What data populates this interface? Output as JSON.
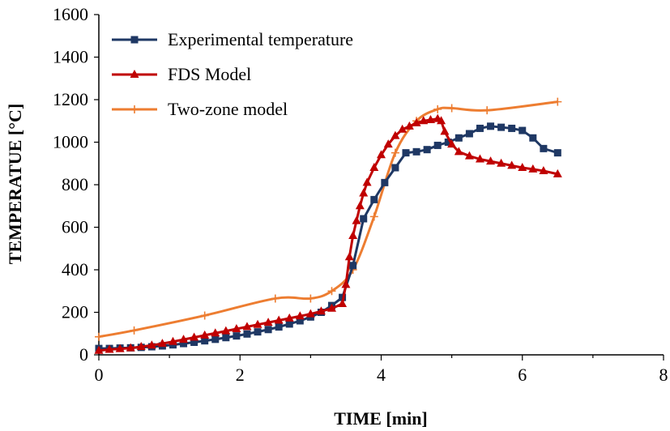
{
  "chart_data": {
    "type": "line",
    "xlabel": "TIME [min]",
    "ylabel": "TEMPERATUE [°C]",
    "xlim": [
      0,
      8
    ],
    "ylim": [
      0,
      1600
    ],
    "xticks": [
      "0",
      "2",
      "4",
      "6",
      "8"
    ],
    "yticks": [
      "0",
      "200",
      "400",
      "600",
      "800",
      "1000",
      "1200",
      "1400",
      "1600"
    ],
    "grid": false,
    "legend_position": "top-left",
    "series": [
      {
        "name": "Experimental temperature",
        "color": "#1f3864",
        "marker": "square",
        "smooth": false,
        "x": [
          0,
          0.15,
          0.3,
          0.45,
          0.6,
          0.75,
          0.9,
          1.05,
          1.2,
          1.35,
          1.5,
          1.65,
          1.8,
          1.95,
          2.1,
          2.25,
          2.4,
          2.55,
          2.7,
          2.85,
          3.0,
          3.15,
          3.3,
          3.45,
          3.6,
          3.75,
          3.9,
          4.05,
          4.2,
          4.35,
          4.5,
          4.65,
          4.8,
          4.95,
          5.1,
          5.25,
          5.4,
          5.55,
          5.7,
          5.85,
          6.0,
          6.15,
          6.3,
          6.5
        ],
        "y": [
          30,
          30,
          32,
          33,
          35,
          38,
          42,
          47,
          53,
          59,
          66,
          73,
          81,
          89,
          98,
          108,
          119,
          131,
          145,
          160,
          178,
          200,
          232,
          270,
          420,
          640,
          730,
          810,
          880,
          950,
          955,
          965,
          985,
          1000,
          1020,
          1040,
          1065,
          1075,
          1070,
          1065,
          1055,
          1020,
          970,
          950
        ]
      },
      {
        "name": "FDS Model",
        "color": "#c00000",
        "marker": "triangle",
        "smooth": false,
        "x": [
          0,
          0.15,
          0.3,
          0.45,
          0.6,
          0.75,
          0.9,
          1.05,
          1.2,
          1.35,
          1.5,
          1.65,
          1.8,
          1.95,
          2.1,
          2.25,
          2.4,
          2.55,
          2.7,
          2.85,
          3.0,
          3.15,
          3.3,
          3.45,
          3.5,
          3.55,
          3.6,
          3.65,
          3.7,
          3.75,
          3.8,
          3.9,
          4.0,
          4.1,
          4.2,
          4.3,
          4.4,
          4.5,
          4.6,
          4.7,
          4.8,
          4.85,
          4.9,
          5.0,
          5.1,
          5.25,
          5.4,
          5.55,
          5.7,
          5.85,
          6.0,
          6.15,
          6.3,
          6.5
        ],
        "y": [
          20,
          25,
          28,
          32,
          38,
          45,
          53,
          62,
          72,
          82,
          92,
          102,
          112,
          122,
          132,
          142,
          152,
          162,
          172,
          182,
          192,
          205,
          218,
          240,
          330,
          460,
          560,
          630,
          700,
          760,
          810,
          880,
          940,
          990,
          1030,
          1060,
          1075,
          1090,
          1100,
          1105,
          1110,
          1100,
          1050,
          990,
          955,
          935,
          920,
          910,
          900,
          890,
          880,
          873,
          865,
          850
        ]
      },
      {
        "name": "Two-zone model",
        "color": "#ed7d31",
        "marker": "plus",
        "smooth": true,
        "x": [
          0,
          0.5,
          1.5,
          2.5,
          3.0,
          3.3,
          3.6,
          3.9,
          4.2,
          4.5,
          4.8,
          5.0,
          5.5,
          6.5
        ],
        "y": [
          85,
          115,
          185,
          265,
          265,
          300,
          400,
          650,
          950,
          1100,
          1155,
          1160,
          1150,
          1190
        ]
      }
    ]
  }
}
